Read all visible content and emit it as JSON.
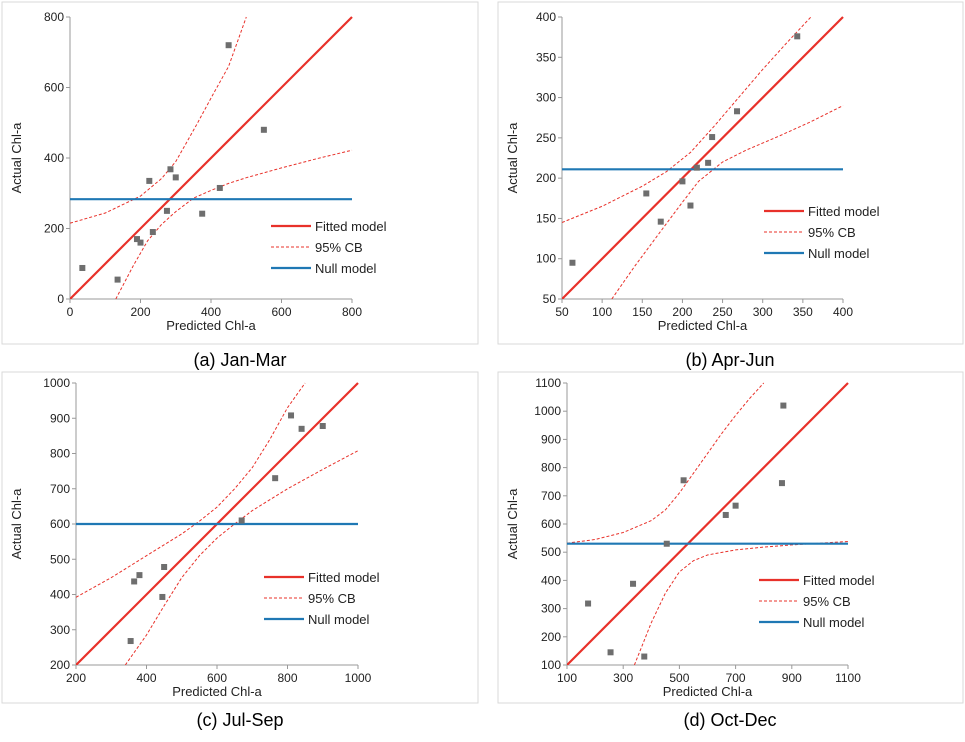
{
  "colors": {
    "fitted": "#e8312a",
    "null": "#1f78b4",
    "points": "#6e6e6e",
    "frame": "#d9d9d9"
  },
  "legend": {
    "fitted": "Fitted model",
    "cb": "95% CB",
    "null": "Null model"
  },
  "chart_data": [
    {
      "type": "scatter",
      "caption": "(a) Jan-Mar",
      "xlabel": "Predicted Chl-a",
      "ylabel": "Actual Chl-a",
      "xlim": [
        0,
        800
      ],
      "ylim": [
        0,
        800
      ],
      "xticks": [
        0,
        200,
        400,
        600,
        800
      ],
      "yticks": [
        0,
        200,
        400,
        600,
        800
      ],
      "series": [
        {
          "name": "Fitted model",
          "kind": "line",
          "style": "solid",
          "x": [
            0,
            800
          ],
          "y": [
            0,
            800
          ]
        },
        {
          "name": "95% CB",
          "kind": "line",
          "style": "dashed",
          "x": [
            0,
            100,
            200,
            260,
            300,
            360,
            400,
            450,
            500,
            600,
            700,
            800
          ],
          "y": [
            215,
            244,
            292,
            342,
            390,
            496,
            570,
            660,
            800,
            null,
            null,
            null
          ]
        },
        {
          "kind": "line",
          "style": "dashed",
          "x": [
            130,
            180,
            220,
            260,
            300,
            350,
            400,
            450,
            500,
            600,
            700,
            800
          ],
          "y": [
            0,
            95,
            165,
            212,
            248,
            286,
            308,
            328,
            344,
            372,
            398,
            422
          ]
        },
        {
          "name": "Null model",
          "kind": "line",
          "style": "solid",
          "x": [
            0,
            800
          ],
          "y": [
            283,
            283
          ]
        },
        {
          "kind": "scatter",
          "x": [
            35,
            135,
            190,
            200,
            225,
            235,
            275,
            285,
            300,
            375,
            425,
            450,
            550
          ],
          "y": [
            88,
            55,
            170,
            160,
            335,
            190,
            250,
            368,
            345,
            242,
            315,
            720,
            480
          ]
        }
      ]
    },
    {
      "type": "scatter",
      "caption": "(b) Apr-Jun",
      "xlabel": "Predicted Chl-a",
      "ylabel": "Actual Chl-a",
      "xlim": [
        50,
        400
      ],
      "ylim": [
        50,
        400
      ],
      "xticks": [
        50,
        100,
        150,
        200,
        250,
        300,
        350,
        400
      ],
      "yticks": [
        50,
        100,
        150,
        200,
        250,
        300,
        350,
        400
      ],
      "series": [
        {
          "name": "Fitted model",
          "kind": "line",
          "style": "solid",
          "x": [
            50,
            400
          ],
          "y": [
            50,
            400
          ]
        },
        {
          "name": "95% CB",
          "kind": "line",
          "style": "dashed",
          "x": [
            50,
            100,
            150,
            180,
            210,
            240,
            270,
            300,
            330,
            360,
            400
          ],
          "y": [
            145,
            165,
            190,
            208,
            232,
            265,
            300,
            335,
            368,
            400,
            null
          ]
        },
        {
          "kind": "line",
          "style": "dashed",
          "x": [
            112,
            140,
            170,
            200,
            220,
            250,
            280,
            320,
            360,
            400
          ],
          "y": [
            50,
            90,
            130,
            170,
            196,
            220,
            235,
            252,
            270,
            290
          ]
        },
        {
          "name": "Null model",
          "kind": "line",
          "style": "solid",
          "x": [
            50,
            400
          ],
          "y": [
            211,
            211
          ]
        },
        {
          "kind": "scatter",
          "x": [
            63,
            155,
            173,
            200,
            210,
            218,
            232,
            237,
            268,
            343
          ],
          "y": [
            95,
            181,
            146,
            196,
            166,
            213,
            219,
            251,
            283,
            376
          ]
        }
      ]
    },
    {
      "type": "scatter",
      "caption": "(c) Jul-Sep",
      "xlabel": "Predicted Chl-a",
      "ylabel": "Actual Chl-a",
      "xlim": [
        200,
        1000
      ],
      "ylim": [
        200,
        1000
      ],
      "xticks": [
        200,
        400,
        600,
        800,
        1000
      ],
      "yticks": [
        200,
        300,
        400,
        500,
        600,
        700,
        800,
        900,
        1000
      ],
      "series": [
        {
          "name": "Fitted model",
          "kind": "line",
          "style": "solid",
          "x": [
            200,
            1000
          ],
          "y": [
            200,
            1000
          ]
        },
        {
          "name": "95% CB",
          "kind": "line",
          "style": "dashed",
          "x": [
            200,
            300,
            400,
            500,
            550,
            600,
            650,
            700,
            750,
            800,
            850
          ],
          "y": [
            392,
            448,
            510,
            572,
            608,
            648,
            700,
            760,
            840,
            930,
            1000
          ]
        },
        {
          "kind": "line",
          "style": "dashed",
          "x": [
            340,
            400,
            450,
            500,
            550,
            600,
            650,
            700,
            800,
            900,
            1000
          ],
          "y": [
            200,
            285,
            368,
            448,
            510,
            560,
            600,
            638,
            700,
            755,
            808
          ]
        },
        {
          "name": "Null model",
          "kind": "line",
          "style": "solid",
          "x": [
            200,
            1000
          ],
          "y": [
            600,
            600
          ]
        },
        {
          "kind": "scatter",
          "x": [
            355,
            365,
            380,
            445,
            450,
            670,
            765,
            810,
            840,
            900
          ],
          "y": [
            268,
            437,
            455,
            393,
            478,
            610,
            730,
            908,
            870,
            878
          ]
        }
      ]
    },
    {
      "type": "scatter",
      "caption": "(d) Oct-Dec",
      "xlabel": "Predicted Chl-a",
      "ylabel": "Actual Chl-a",
      "xlim": [
        100,
        1100
      ],
      "ylim": [
        100,
        1100
      ],
      "xticks": [
        100,
        300,
        500,
        700,
        900,
        1100
      ],
      "yticks": [
        100,
        200,
        300,
        400,
        500,
        600,
        700,
        800,
        900,
        1000,
        1100
      ],
      "series": [
        {
          "name": "Fitted model",
          "kind": "line",
          "style": "solid",
          "x": [
            100,
            1100
          ],
          "y": [
            100,
            1100
          ]
        },
        {
          "name": "95% CB",
          "kind": "line",
          "style": "dashed",
          "x": [
            100,
            200,
            300,
            400,
            450,
            500,
            550,
            600,
            650,
            700,
            750,
            800
          ],
          "y": [
            532,
            545,
            570,
            612,
            650,
            710,
            780,
            850,
            920,
            985,
            1045,
            1100
          ]
        },
        {
          "kind": "line",
          "style": "dashed",
          "x": [
            340,
            400,
            450,
            500,
            550,
            600,
            700,
            800,
            900,
            1000,
            1100
          ],
          "y": [
            100,
            250,
            355,
            430,
            470,
            490,
            508,
            518,
            526,
            532,
            538
          ]
        },
        {
          "name": "Null model",
          "kind": "line",
          "style": "solid",
          "x": [
            100,
            1100
          ],
          "y": [
            530,
            530
          ]
        },
        {
          "kind": "scatter",
          "x": [
            175,
            255,
            335,
            375,
            455,
            515,
            665,
            700,
            865,
            870
          ],
          "y": [
            318,
            145,
            388,
            130,
            530,
            755,
            632,
            665,
            745,
            1020
          ]
        }
      ]
    }
  ]
}
